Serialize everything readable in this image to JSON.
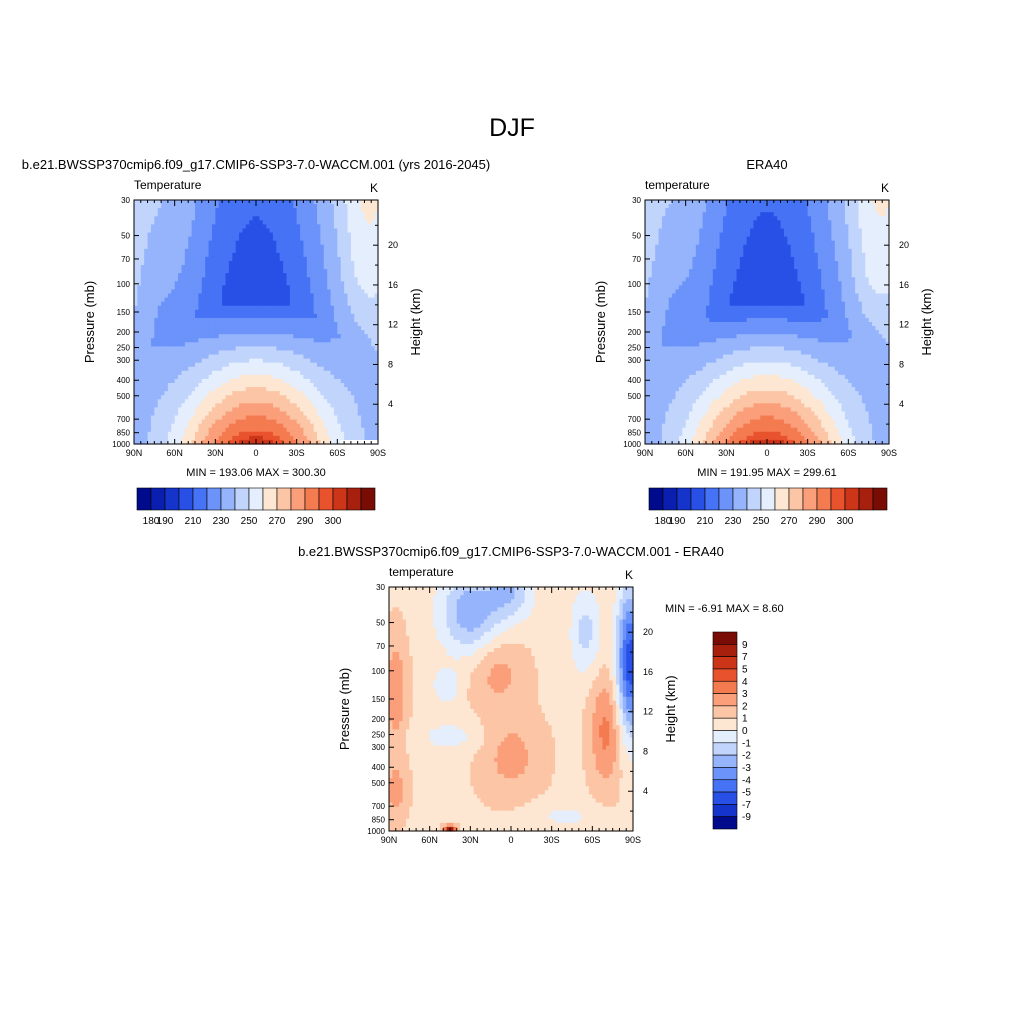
{
  "figure": {
    "title": "DJF"
  },
  "chart_data": [
    {
      "type": "heatmap",
      "title": "b.e21.BWSSP370cmip6.f09_g17.CMIP6-SSP3-7.0-WACCM.001 (yrs 2016-2045)",
      "left_label": "Temperature",
      "units": "K",
      "xlabel": "",
      "ylabel": "Pressure (mb)",
      "right_axis_label": "Height (km)",
      "x_ticks": [
        "90N",
        "60N",
        "30N",
        "0",
        "30S",
        "60S",
        "90S"
      ],
      "y_ticks": [
        30,
        50,
        70,
        100,
        150,
        200,
        250,
        300,
        400,
        500,
        700,
        850,
        1000
      ],
      "height_ticks": [
        20,
        16,
        12,
        8,
        4
      ],
      "ylim": [
        1000,
        30
      ],
      "y_scale": "log",
      "stats": "MIN = 193.06  MAX = 300.30",
      "colorbar": {
        "orientation": "horizontal",
        "tick_labels": [
          "180",
          "190",
          "210",
          "230",
          "250",
          "270",
          "290",
          "300"
        ],
        "colors": [
          "#000a8c",
          "#0a1fb0",
          "#1434cc",
          "#2850e6",
          "#4673f5",
          "#6b93fa",
          "#96b4fc",
          "#c0d4fc",
          "#e4eefc",
          "#fde6d2",
          "#fcc5a5",
          "#fa9f7a",
          "#f47a50",
          "#e8532e",
          "#cc3518",
          "#a6200d",
          "#7a0c06"
        ]
      },
      "model": "base"
    },
    {
      "type": "heatmap",
      "title": "ERA40",
      "left_label": "temperature",
      "units": "K",
      "xlabel": "",
      "ylabel": "Pressure (mb)",
      "right_axis_label": "Height (km)",
      "x_ticks": [
        "90N",
        "60N",
        "30N",
        "0",
        "30S",
        "60S",
        "90S"
      ],
      "y_ticks": [
        30,
        50,
        70,
        100,
        150,
        200,
        250,
        300,
        400,
        500,
        700,
        850,
        1000
      ],
      "height_ticks": [
        20,
        16,
        12,
        8,
        4
      ],
      "ylim": [
        1000,
        30
      ],
      "y_scale": "log",
      "stats": "MIN = 191.95  MAX = 299.61",
      "colorbar": {
        "orientation": "horizontal",
        "tick_labels": [
          "180",
          "190",
          "210",
          "230",
          "250",
          "270",
          "290",
          "300"
        ],
        "colors": [
          "#000a8c",
          "#0a1fb0",
          "#1434cc",
          "#2850e6",
          "#4673f5",
          "#6b93fa",
          "#96b4fc",
          "#c0d4fc",
          "#e4eefc",
          "#fde6d2",
          "#fcc5a5",
          "#fa9f7a",
          "#f47a50",
          "#e8532e",
          "#cc3518",
          "#a6200d",
          "#7a0c06"
        ]
      },
      "model": "obs"
    },
    {
      "type": "heatmap",
      "title": "b.e21.BWSSP370cmip6.f09_g17.CMIP6-SSP3-7.0-WACCM.001 - ERA40",
      "left_label": "temperature",
      "units": "K",
      "xlabel": "",
      "ylabel": "Pressure (mb)",
      "right_axis_label": "Height (km)",
      "x_ticks": [
        "90N",
        "60N",
        "30N",
        "0",
        "30S",
        "60S",
        "90S"
      ],
      "y_ticks": [
        30,
        50,
        70,
        100,
        150,
        200,
        250,
        300,
        400,
        500,
        700,
        850,
        1000
      ],
      "height_ticks": [
        20,
        16,
        12,
        8,
        4
      ],
      "ylim": [
        1000,
        30
      ],
      "y_scale": "log",
      "stats": "MIN =  -6.91  MAX =   8.60",
      "colorbar": {
        "orientation": "vertical",
        "tick_labels": [
          "9",
          "7",
          "5",
          "4",
          "3",
          "2",
          "1",
          "0",
          "-1",
          "-2",
          "-3",
          "-4",
          "-5",
          "-7",
          "-9"
        ],
        "colors": [
          "#7a0c06",
          "#a6200d",
          "#cc3518",
          "#e8532e",
          "#f47a50",
          "#fa9f7a",
          "#fcc5a5",
          "#fde6d2",
          "#e4eefc",
          "#c0d4fc",
          "#96b4fc",
          "#6b93fa",
          "#4673f5",
          "#2850e6",
          "#1434cc",
          "#000a8c"
        ]
      },
      "model": "diff"
    }
  ]
}
